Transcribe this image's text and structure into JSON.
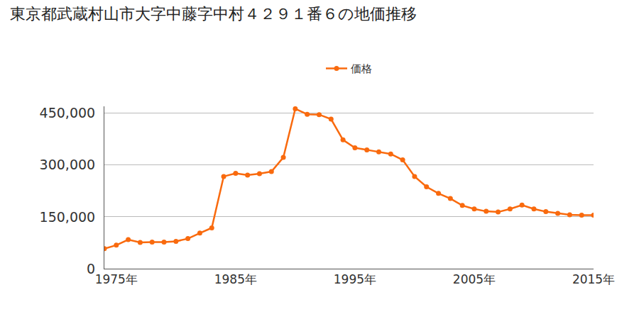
{
  "chart_data": {
    "type": "line",
    "title": "東京都武蔵村山市大字中藤字中村４２９１番６の地価推移",
    "x": [
      1974,
      1975,
      1976,
      1977,
      1978,
      1979,
      1980,
      1981,
      1982,
      1983,
      1984,
      1985,
      1986,
      1987,
      1988,
      1989,
      1990,
      1991,
      1992,
      1993,
      1994,
      1995,
      1996,
      1997,
      1998,
      1999,
      2000,
      2001,
      2002,
      2003,
      2004,
      2005,
      2006,
      2007,
      2008,
      2009,
      2010,
      2011,
      2012,
      2013,
      2014,
      2015
    ],
    "series": [
      {
        "name": "価格",
        "color": "#f96a0e",
        "marker": "circle",
        "values": [
          58000,
          68000,
          84000,
          76000,
          77000,
          77000,
          79000,
          87000,
          103000,
          118000,
          267000,
          276000,
          271000,
          275000,
          281000,
          322000,
          463000,
          447000,
          446000,
          433000,
          373000,
          350000,
          344000,
          338000,
          332000,
          315000,
          267000,
          237000,
          218000,
          203000,
          183000,
          173000,
          166000,
          164000,
          173000,
          184000,
          173000,
          165000,
          160000,
          156000,
          155000,
          155000
        ]
      }
    ],
    "xlim": [
      1974,
      2015
    ],
    "xticks": [
      {
        "value": 1975,
        "label": "1975年"
      },
      {
        "value": 1985,
        "label": "1985年"
      },
      {
        "value": 1995,
        "label": "1995年"
      },
      {
        "value": 2005,
        "label": "2005年"
      },
      {
        "value": 2015,
        "label": "2015年"
      }
    ],
    "ylim": [
      0,
      470000
    ],
    "yticks": [
      0,
      {
        "value": 150000,
        "label": "150,000"
      },
      {
        "value": 300000,
        "label": "300,000"
      },
      {
        "value": 450000,
        "label": "450,000"
      }
    ],
    "grid": true,
    "legend": "top"
  }
}
